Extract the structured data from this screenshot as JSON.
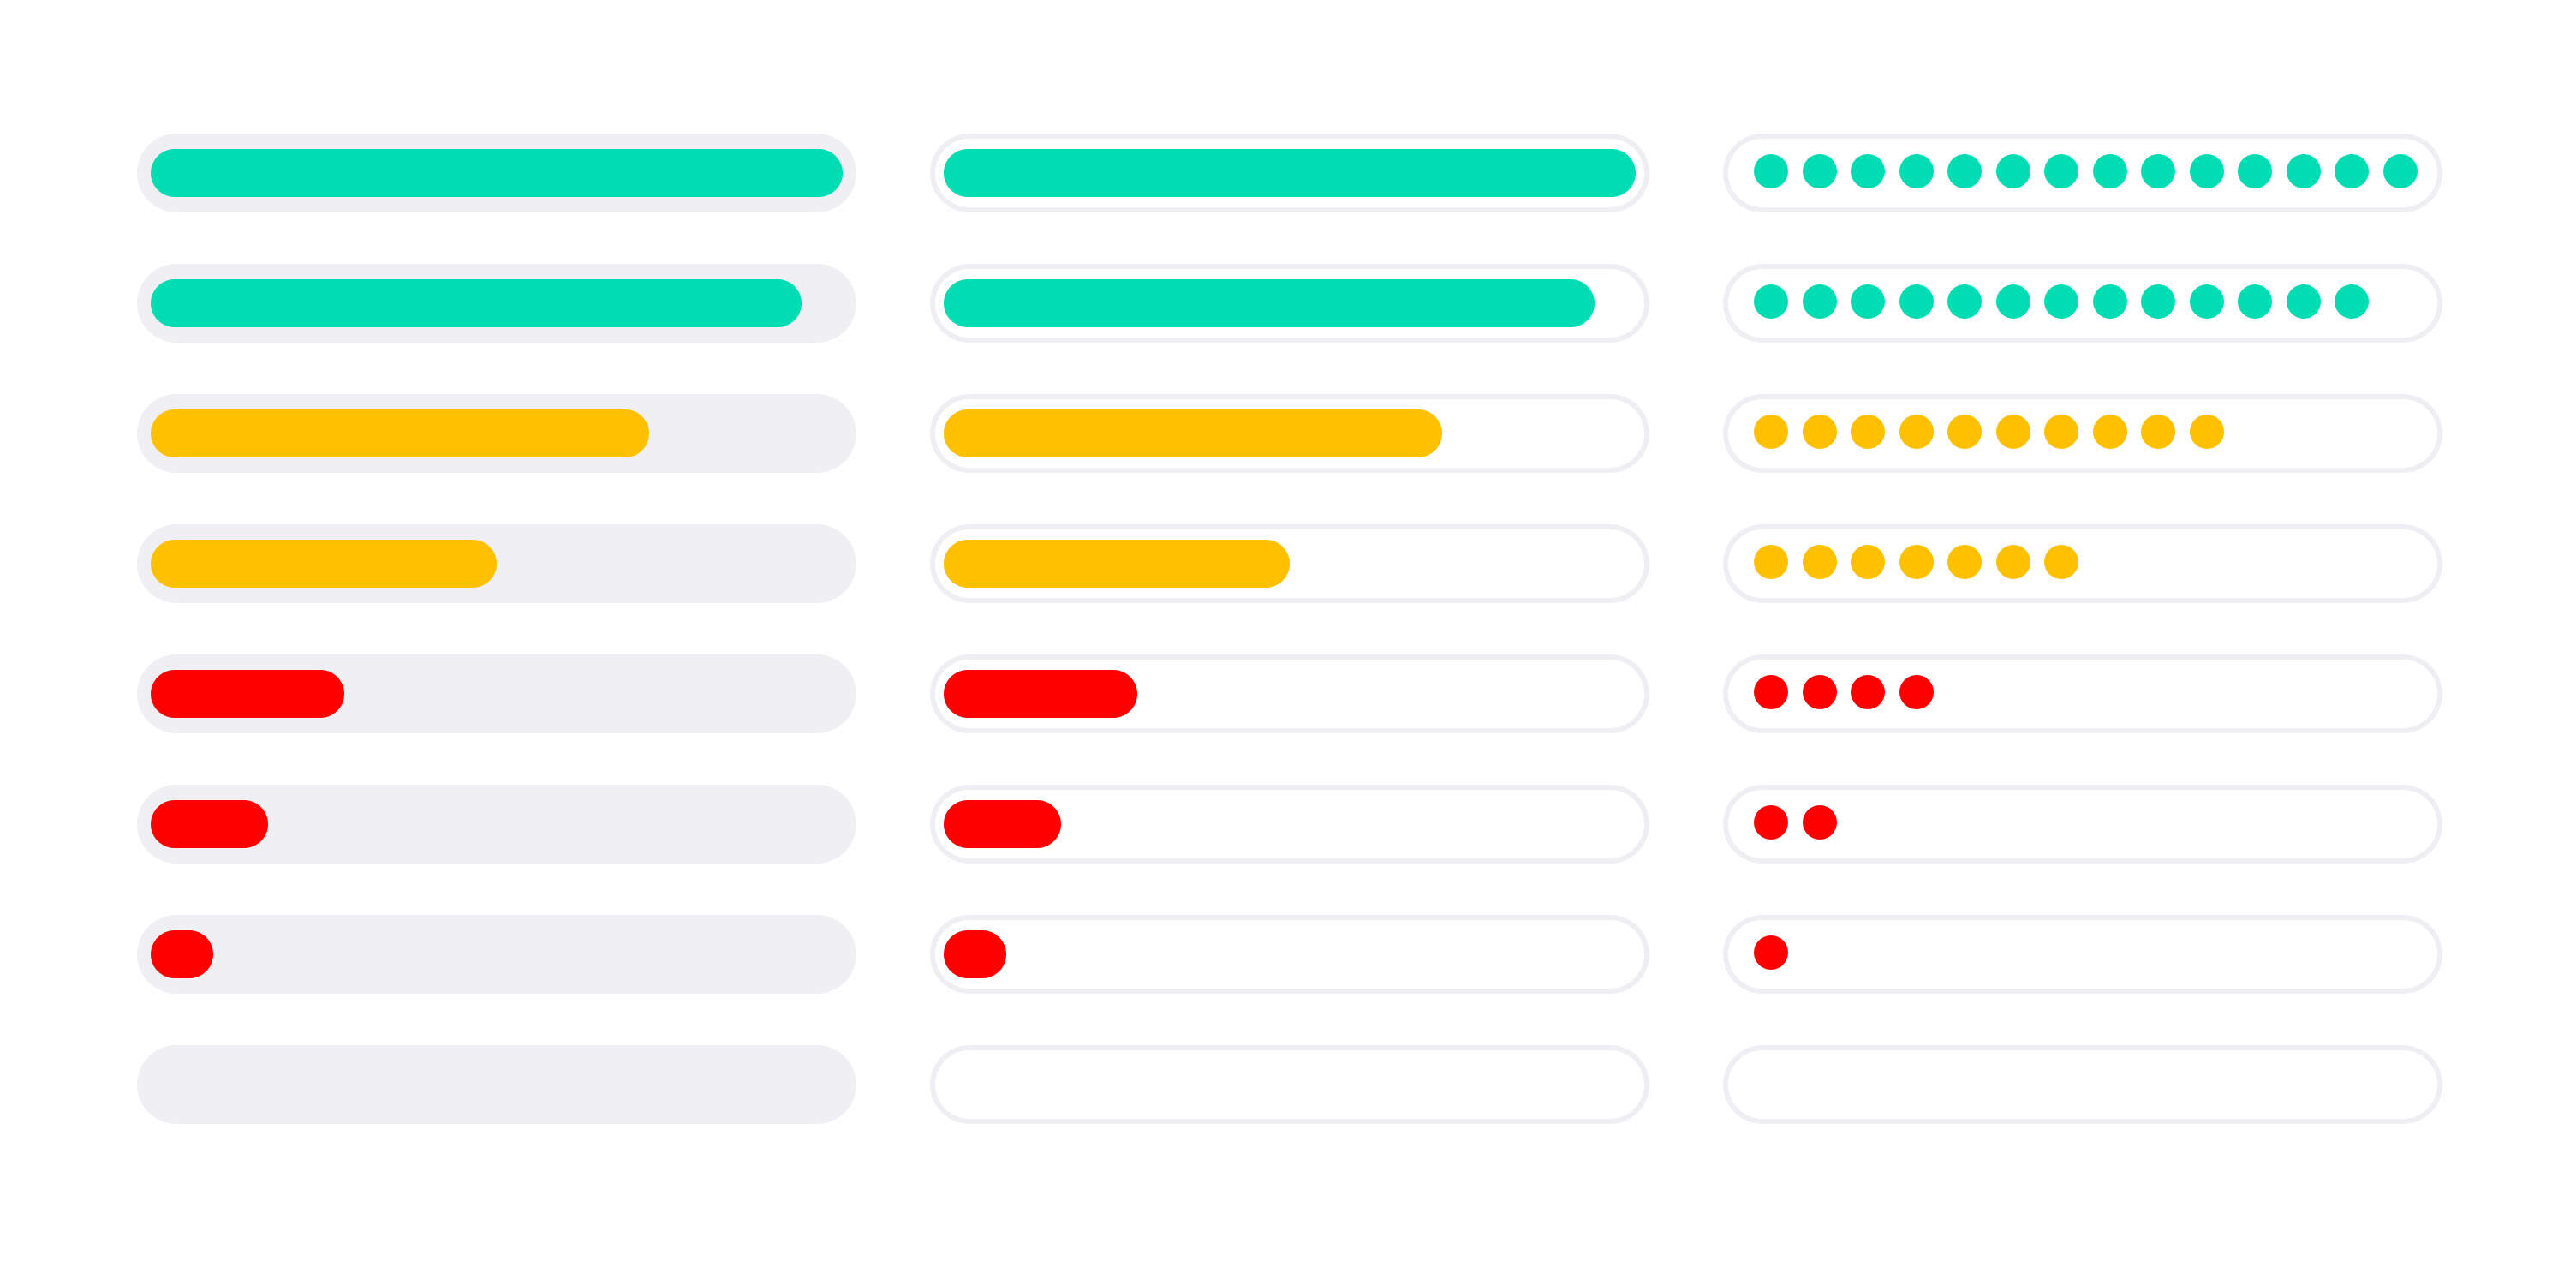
{
  "colors": {
    "high": "#00ddb3",
    "medium": "#ffc000",
    "low": "#ff0000",
    "track_solid": "#f0eff4",
    "track_outline": "#efeef3"
  },
  "bars": [
    {
      "level": 1.0,
      "status": "high",
      "dots": 14
    },
    {
      "level": 0.94,
      "status": "high",
      "dots": 13
    },
    {
      "level": 0.72,
      "status": "medium",
      "dots": 10
    },
    {
      "level": 0.5,
      "status": "medium",
      "dots": 7
    },
    {
      "level": 0.28,
      "status": "low",
      "dots": 4
    },
    {
      "level": 0.17,
      "status": "low",
      "dots": 2
    },
    {
      "level": 0.09,
      "status": "low",
      "dots": 1
    },
    {
      "level": 0.0,
      "status": "empty",
      "dots": 0
    }
  ]
}
